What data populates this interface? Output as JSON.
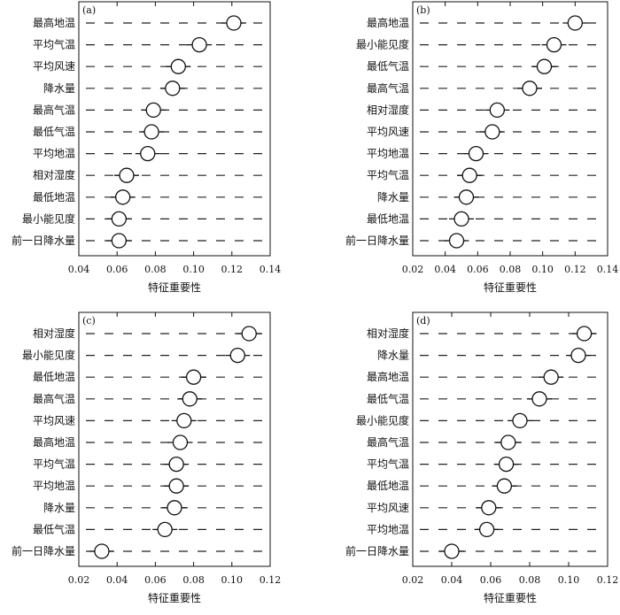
{
  "chart_data": [
    {
      "type": "scatter",
      "panel_label": "(a)",
      "xlabel": "特征重要性",
      "xlim": [
        0.04,
        0.14
      ],
      "xticks": [
        "0.04",
        "0.06",
        "0.08",
        "0.10",
        "0.12",
        "0.14"
      ],
      "categories": [
        "最高地温",
        "平均气温",
        "平均风速",
        "降水量",
        "最高气温",
        "最低气温",
        "平均地温",
        "相对湿度",
        "最低地温",
        "最小能见度",
        "前一日降水量"
      ],
      "values": [
        0.121,
        0.103,
        0.092,
        0.089,
        0.079,
        0.078,
        0.076,
        0.065,
        0.063,
        0.061,
        0.061
      ],
      "grid": "dashed-row-guides"
    },
    {
      "type": "scatter",
      "panel_label": "(b)",
      "xlabel": "特征重要性",
      "xlim": [
        0.02,
        0.14
      ],
      "xticks": [
        "0.02",
        "0.04",
        "0.06",
        "0.08",
        "0.10",
        "0.12",
        "0.14"
      ],
      "categories": [
        "最高地温",
        "最小能见度",
        "最低气温",
        "最高气温",
        "相对湿度",
        "平均风速",
        "平均地温",
        "平均气温",
        "降水量",
        "最低地温",
        "前一日降水量"
      ],
      "values": [
        0.12,
        0.107,
        0.101,
        0.092,
        0.072,
        0.069,
        0.059,
        0.055,
        0.053,
        0.05,
        0.047
      ],
      "grid": "dashed-row-guides"
    },
    {
      "type": "scatter",
      "panel_label": "(c)",
      "xlabel": "特征重要性",
      "xlim": [
        0.02,
        0.12
      ],
      "xticks": [
        "0.02",
        "0.04",
        "0.06",
        "0.08",
        "0.10",
        "0.12"
      ],
      "categories": [
        "相对湿度",
        "最小能见度",
        "最低地温",
        "最高气温",
        "平均风速",
        "最高地温",
        "平均气温",
        "平均地温",
        "降水量",
        "最低气温",
        "前一日降水量"
      ],
      "values": [
        0.109,
        0.103,
        0.08,
        0.078,
        0.075,
        0.073,
        0.071,
        0.071,
        0.07,
        0.065,
        0.032
      ],
      "grid": "dashed-row-guides"
    },
    {
      "type": "scatter",
      "panel_label": "(d)",
      "xlabel": "特征重要性",
      "xlim": [
        0.02,
        0.12
      ],
      "xticks": [
        "0.02",
        "0.04",
        "0.06",
        "0.08",
        "0.10",
        "0.12"
      ],
      "categories": [
        "相对湿度",
        "降水量",
        "最高地温",
        "最低气温",
        "最小能见度",
        "最高气温",
        "平均气温",
        "最低地温",
        "平均风速",
        "平均地温",
        "前一日降水量"
      ],
      "values": [
        0.108,
        0.105,
        0.091,
        0.085,
        0.075,
        0.069,
        0.068,
        0.067,
        0.059,
        0.058,
        0.04
      ],
      "grid": "dashed-row-guides"
    }
  ]
}
